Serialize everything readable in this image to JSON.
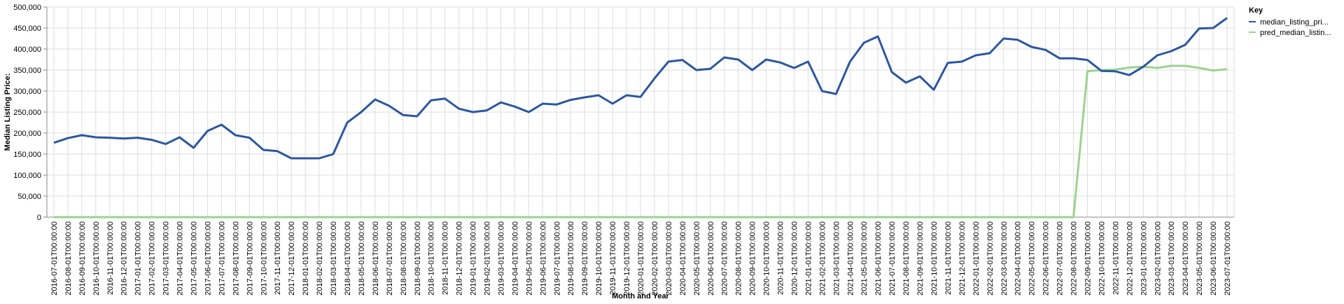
{
  "chart_data": {
    "type": "line",
    "y_label": "Median Listing Price:",
    "x_label": "Month and Year",
    "legend_title": "Key",
    "legend_position": "right",
    "grid": true,
    "categories": [
      "2016-07-01T00:00:00",
      "2016-08-01T00:00:00",
      "2016-09-01T00:00:00",
      "2016-10-01T00:00:00",
      "2016-11-01T00:00:00",
      "2016-12-01T00:00:00",
      "2017-01-01T00:00:00",
      "2017-02-01T00:00:00",
      "2017-03-01T00:00:00",
      "2017-04-01T00:00:00",
      "2017-05-01T00:00:00",
      "2017-06-01T00:00:00",
      "2017-07-01T00:00:00",
      "2017-08-01T00:00:00",
      "2017-09-01T00:00:00",
      "2017-10-01T00:00:00",
      "2017-11-01T00:00:00",
      "2017-12-01T00:00:00",
      "2018-01-01T00:00:00",
      "2018-02-01T00:00:00",
      "2018-03-01T00:00:00",
      "2018-04-01T00:00:00",
      "2018-05-01T00:00:00",
      "2018-06-01T00:00:00",
      "2018-07-01T00:00:00",
      "2018-08-01T00:00:00",
      "2018-09-01T00:00:00",
      "2018-10-01T00:00:00",
      "2018-11-01T00:00:00",
      "2018-12-01T00:00:00",
      "2019-01-01T00:00:00",
      "2019-02-01T00:00:00",
      "2019-03-01T00:00:00",
      "2019-04-01T00:00:00",
      "2019-05-01T00:00:00",
      "2019-06-01T00:00:00",
      "2019-07-01T00:00:00",
      "2019-08-01T00:00:00",
      "2019-09-01T00:00:00",
      "2019-10-01T00:00:00",
      "2019-11-01T00:00:00",
      "2019-12-01T00:00:00",
      "2020-01-01T00:00:00",
      "2020-02-01T00:00:00",
      "2020-03-01T00:00:00",
      "2020-04-01T00:00:00",
      "2020-05-01T00:00:00",
      "2020-06-01T00:00:00",
      "2020-07-01T00:00:00",
      "2020-08-01T00:00:00",
      "2020-09-01T00:00:00",
      "2020-10-01T00:00:00",
      "2020-11-01T00:00:00",
      "2020-12-01T00:00:00",
      "2021-01-01T00:00:00",
      "2021-02-01T00:00:00",
      "2021-03-01T00:00:00",
      "2021-04-01T00:00:00",
      "2021-05-01T00:00:00",
      "2021-06-01T00:00:00",
      "2021-07-01T00:00:00",
      "2021-08-01T00:00:00",
      "2021-09-01T00:00:00",
      "2021-10-01T00:00:00",
      "2021-11-01T00:00:00",
      "2021-12-01T00:00:00",
      "2022-01-01T00:00:00",
      "2022-02-01T00:00:00",
      "2022-03-01T00:00:00",
      "2022-04-01T00:00:00",
      "2022-05-01T00:00:00",
      "2022-06-01T00:00:00",
      "2022-07-01T00:00:00",
      "2022-08-01T00:00:00",
      "2022-09-01T00:00:00",
      "2022-10-01T00:00:00",
      "2022-11-01T00:00:00",
      "2022-12-01T00:00:00",
      "2023-01-01T00:00:00",
      "2023-02-01T00:00:00",
      "2023-03-01T00:00:00",
      "2023-04-01T00:00:00",
      "2023-05-01T00:00:00",
      "2023-06-01T00:00:00",
      "2023-07-01T00:00:00"
    ],
    "series": [
      {
        "name": "median_listing_pri...",
        "color": "#2c57a0",
        "values": [
          177000,
          188000,
          195000,
          190000,
          189000,
          187000,
          189000,
          184000,
          174000,
          190000,
          165000,
          205000,
          220000,
          195000,
          189000,
          160000,
          157000,
          140000,
          140000,
          140000,
          150000,
          225000,
          250000,
          280000,
          265000,
          243000,
          240000,
          278000,
          282000,
          258000,
          250000,
          254000,
          273000,
          263000,
          250000,
          270000,
          268000,
          279000,
          285000,
          290000,
          270000,
          290000,
          286000,
          330000,
          370000,
          374000,
          350000,
          353000,
          380000,
          375000,
          350000,
          375000,
          368000,
          355000,
          370000,
          300000,
          293000,
          370000,
          415000,
          430000,
          345000,
          320000,
          335000,
          303000,
          367000,
          370000,
          385000,
          390000,
          425000,
          422000,
          405000,
          398000,
          378000,
          378000,
          374000,
          348000,
          347000,
          338000,
          358000,
          385000,
          395000,
          410000,
          449000,
          450000,
          474000
        ]
      },
      {
        "name": "pred_median_listin...",
        "color": "#9bd38f",
        "values": [
          0,
          0,
          0,
          0,
          0,
          0,
          0,
          0,
          0,
          0,
          0,
          0,
          0,
          0,
          0,
          0,
          0,
          0,
          0,
          0,
          0,
          0,
          0,
          0,
          0,
          0,
          0,
          0,
          0,
          0,
          0,
          0,
          0,
          0,
          0,
          0,
          0,
          0,
          0,
          0,
          0,
          0,
          0,
          0,
          0,
          0,
          0,
          0,
          0,
          0,
          0,
          0,
          0,
          0,
          0,
          0,
          0,
          0,
          0,
          0,
          0,
          0,
          0,
          0,
          0,
          0,
          0,
          0,
          0,
          0,
          0,
          0,
          0,
          0,
          347000,
          350000,
          351000,
          356000,
          358000,
          355000,
          360000,
          360000,
          355000,
          349000,
          352000
        ]
      }
    ],
    "ylim": [
      0,
      500000
    ],
    "yticks": [
      0,
      {
        "value": 50000,
        "label": "50,000"
      },
      {
        "value": 100000,
        "label": "100,000"
      },
      {
        "value": 150000,
        "label": "150,000"
      },
      {
        "value": 200000,
        "label": "200,000"
      },
      {
        "value": 250000,
        "label": "250,000"
      },
      {
        "value": 300000,
        "label": "300,000"
      },
      {
        "value": 350000,
        "label": "350,000"
      },
      {
        "value": 400000,
        "label": "400,000"
      },
      {
        "value": 450000,
        "label": "450,000"
      },
      {
        "value": 500000,
        "label": "500,000"
      }
    ]
  }
}
